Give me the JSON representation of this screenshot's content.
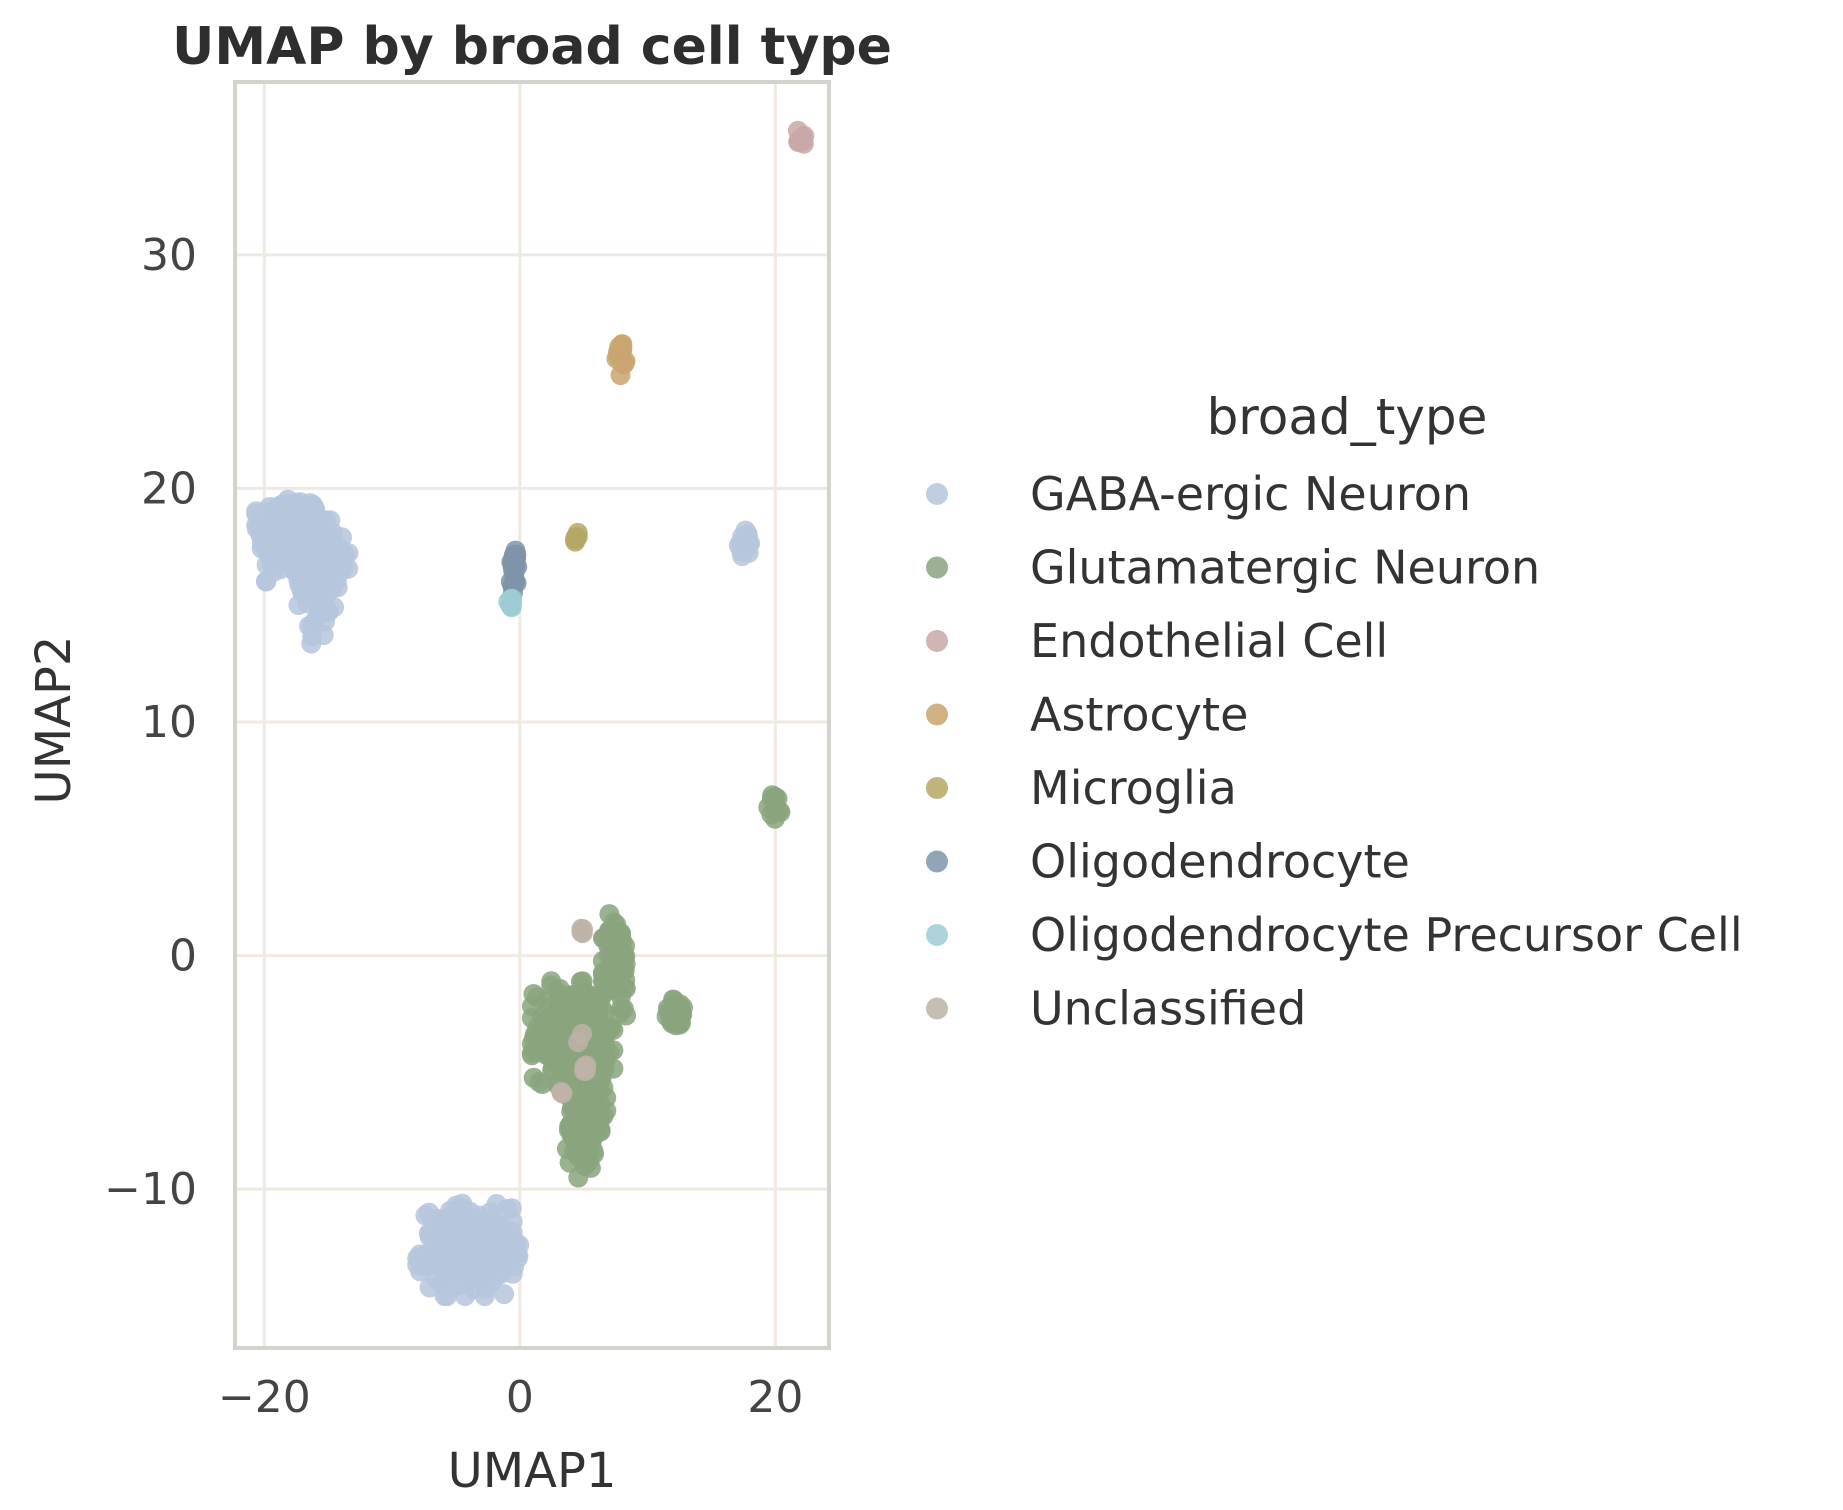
{
  "chart_data": {
    "type": "scatter",
    "title": "UMAP by broad cell type",
    "xlabel": "UMAP1",
    "ylabel": "UMAP2",
    "xlim": [
      -22.3,
      24.2
    ],
    "ylim": [
      -16.8,
      37.4
    ],
    "xticks": [
      {
        "value": -20,
        "label": "−20"
      },
      {
        "value": 0,
        "label": "0"
      },
      {
        "value": 20,
        "label": "20"
      }
    ],
    "yticks": [
      {
        "value": -10,
        "label": "−10"
      },
      {
        "value": 0,
        "label": "0"
      },
      {
        "value": 10,
        "label": "10"
      },
      {
        "value": 20,
        "label": "20"
      },
      {
        "value": 30,
        "label": "30"
      }
    ],
    "grid": true,
    "legend": {
      "title": "broad_type",
      "placement": "right"
    },
    "series": [
      {
        "name": "GABA-ergic Neuron",
        "color": "#b6c6dc",
        "clusters": [
          {
            "cx": -18,
            "cy": 18,
            "sx": 1.2,
            "sy": 0.9,
            "n": 220
          },
          {
            "cx": -15.8,
            "cy": 16.0,
            "sx": 0.7,
            "sy": 1.2,
            "n": 90
          },
          {
            "cx": -14.2,
            "cy": 17.2,
            "sx": 0.5,
            "sy": 0.5,
            "n": 35
          },
          {
            "cx": -4.3,
            "cy": -12.6,
            "sx": 1.7,
            "sy": 0.9,
            "n": 200
          },
          {
            "cx": -1.1,
            "cy": -12.6,
            "sx": 0.5,
            "sy": 0.4,
            "n": 25
          },
          {
            "cx": 17.6,
            "cy": 17.6,
            "sx": 0.3,
            "sy": 0.3,
            "n": 15
          }
        ]
      },
      {
        "name": "Glutamatergic Neuron",
        "color": "#8aa57e",
        "clusters": [
          {
            "cx": 3.8,
            "cy": -3.3,
            "sx": 1.3,
            "sy": 1.0,
            "n": 200
          },
          {
            "cx": 6.0,
            "cy": -4.0,
            "sx": 0.6,
            "sy": 1.3,
            "n": 90
          },
          {
            "cx": 5.0,
            "cy": -7.3,
            "sx": 0.6,
            "sy": 1.0,
            "n": 90
          },
          {
            "cx": 7.6,
            "cy": -0.5,
            "sx": 0.5,
            "sy": 1.1,
            "n": 75
          },
          {
            "cx": 12.3,
            "cy": -2.5,
            "sx": 0.5,
            "sy": 0.3,
            "n": 30
          },
          {
            "cx": 20.0,
            "cy": 6.4,
            "sx": 0.25,
            "sy": 0.3,
            "n": 12
          }
        ]
      },
      {
        "name": "Endothelial Cell",
        "color": "#c8a8a8",
        "clusters": [
          {
            "cx": 22.0,
            "cy": 35.0,
            "sx": 0.2,
            "sy": 0.2,
            "n": 10
          }
        ]
      },
      {
        "name": "Astrocyte",
        "color": "#c9a470",
        "clusters": [
          {
            "cx": 8.0,
            "cy": 25.6,
            "sx": 0.2,
            "sy": 0.35,
            "n": 14
          }
        ]
      },
      {
        "name": "Microglia",
        "color": "#b5a765",
        "clusters": [
          {
            "cx": 4.5,
            "cy": 17.9,
            "sx": 0.12,
            "sy": 0.12,
            "n": 6
          }
        ]
      },
      {
        "name": "Oligodendrocyte",
        "color": "#7f94aa",
        "clusters": [
          {
            "cx": -0.45,
            "cy": 16.5,
            "sx": 0.15,
            "sy": 0.5,
            "n": 22
          }
        ]
      },
      {
        "name": "Oligodendrocyte Precursor Cell",
        "color": "#9ecbd4",
        "clusters": [
          {
            "cx": -0.7,
            "cy": 15.1,
            "sx": 0.15,
            "sy": 0.15,
            "n": 8
          }
        ]
      },
      {
        "name": "Unclassified",
        "color": "#bdb3a6",
        "clusters": [
          {
            "cx": 4.8,
            "cy": 1.2,
            "sx": 0.15,
            "sy": 0.15,
            "n": 4
          },
          {
            "cx": 5.1,
            "cy": -4.8,
            "sx": 0.15,
            "sy": 0.15,
            "n": 4
          },
          {
            "cx": 3.5,
            "cy": -5.8,
            "sx": 0.15,
            "sy": 0.15,
            "n": 3
          },
          {
            "cx": 4.8,
            "cy": -3.5,
            "sx": 0.15,
            "sy": 0.15,
            "n": 2
          }
        ]
      }
    ]
  }
}
